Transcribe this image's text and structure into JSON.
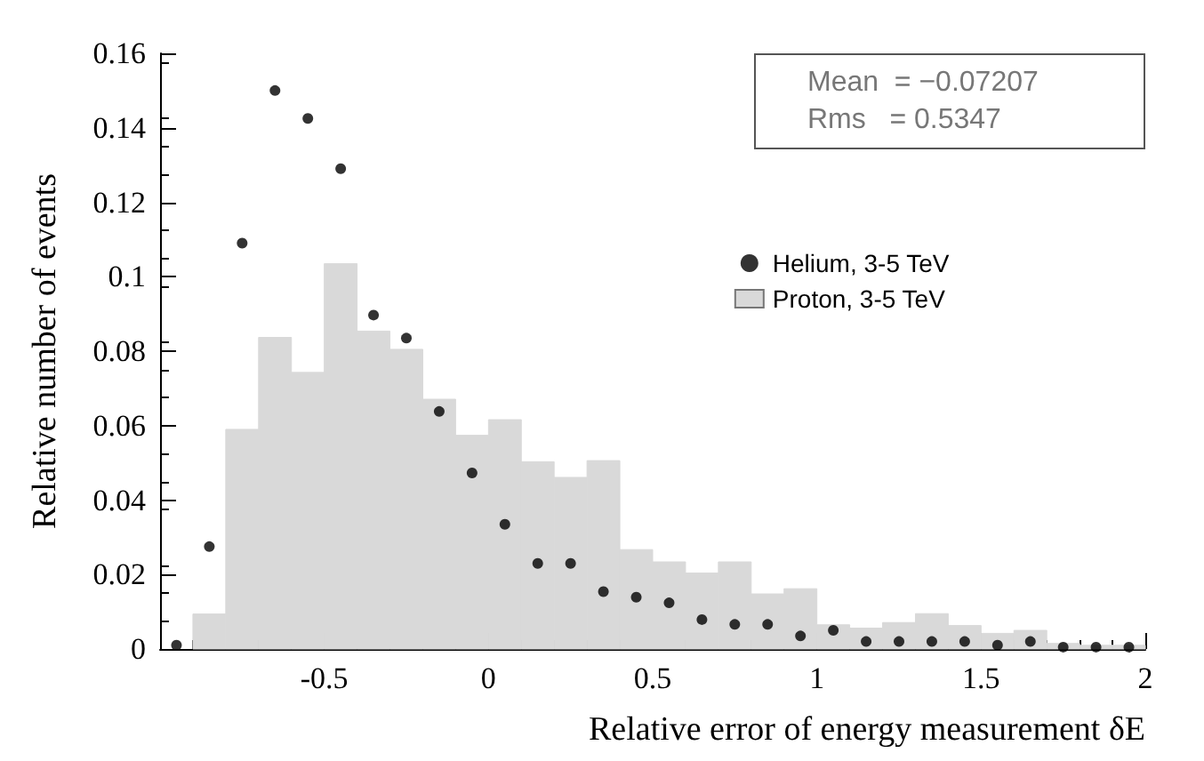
{
  "chart_data": {
    "type": "histogram",
    "xlabel": "Relative error of energy measurement δE",
    "ylabel": "Relative number of events",
    "annotations": [
      "Mean  = −0.07207",
      "Rms   = 0.5347"
    ],
    "bins": [
      -0.9,
      -0.8,
      -0.7,
      -0.6,
      -0.5,
      -0.4,
      -0.3,
      -0.2,
      -0.1,
      0,
      0.1,
      0.2,
      0.3,
      0.4,
      0.5,
      0.6,
      0.7,
      0.8,
      0.9,
      1.0,
      1.1,
      1.2,
      1.3,
      1.4,
      1.5,
      1.6,
      1.7,
      1.8,
      1.9,
      2.0
    ],
    "series": [
      {
        "type": "scatter",
        "name": "Helium, 3-5 TeV",
        "color": "#000000",
        "x": [
          -0.95,
          -0.85,
          -0.75,
          -0.65,
          -0.55,
          -0.45,
          -0.35,
          -0.25,
          -0.15,
          -0.05,
          0.05,
          0.15,
          0.25,
          0.35,
          0.45,
          0.55,
          0.65,
          0.75,
          0.85,
          0.95,
          1.05,
          1.15,
          1.25,
          1.35,
          1.45,
          1.55,
          1.65,
          1.75,
          1.85,
          1.95
        ],
        "values": [
          0.001,
          0.0275,
          0.109,
          0.15,
          0.1425,
          0.129,
          0.0897,
          0.0835,
          0.0638,
          0.0473,
          0.0335,
          0.023,
          0.023,
          0.0154,
          0.0139,
          0.0124,
          0.0079,
          0.0066,
          0.0066,
          0.0035,
          0.005,
          0.002,
          0.002,
          0.002,
          0.002,
          0.001,
          0.002,
          0.0005,
          0.0005,
          0.0005
        ]
      },
      {
        "name": "Proton, 3-5 TeV",
        "color": "#d9d9d9",
        "values": [
          0.0094,
          0.059,
          0.0837,
          0.0743,
          0.1035,
          0.0854,
          0.0805,
          0.0671,
          0.0574,
          0.0616,
          0.0503,
          0.0461,
          0.0506,
          0.0267,
          0.0234,
          0.0204,
          0.0234,
          0.0148,
          0.0162,
          0.0065,
          0.0056,
          0.0071,
          0.0095,
          0.0063,
          0.0042,
          0.005,
          0.0015,
          0.001,
          0.001
        ]
      }
    ],
    "xlim": [
      -1,
      2
    ],
    "xticks": [
      -0.5,
      0,
      0.5,
      1,
      1.5,
      2
    ],
    "ylim": [
      0,
      0.16
    ],
    "yticks": [
      0,
      0.02,
      0.04,
      0.06,
      0.08,
      0.1,
      0.12,
      0.14,
      0.16
    ],
    "grid": false,
    "legend": "top right",
    "marker": "circle"
  }
}
